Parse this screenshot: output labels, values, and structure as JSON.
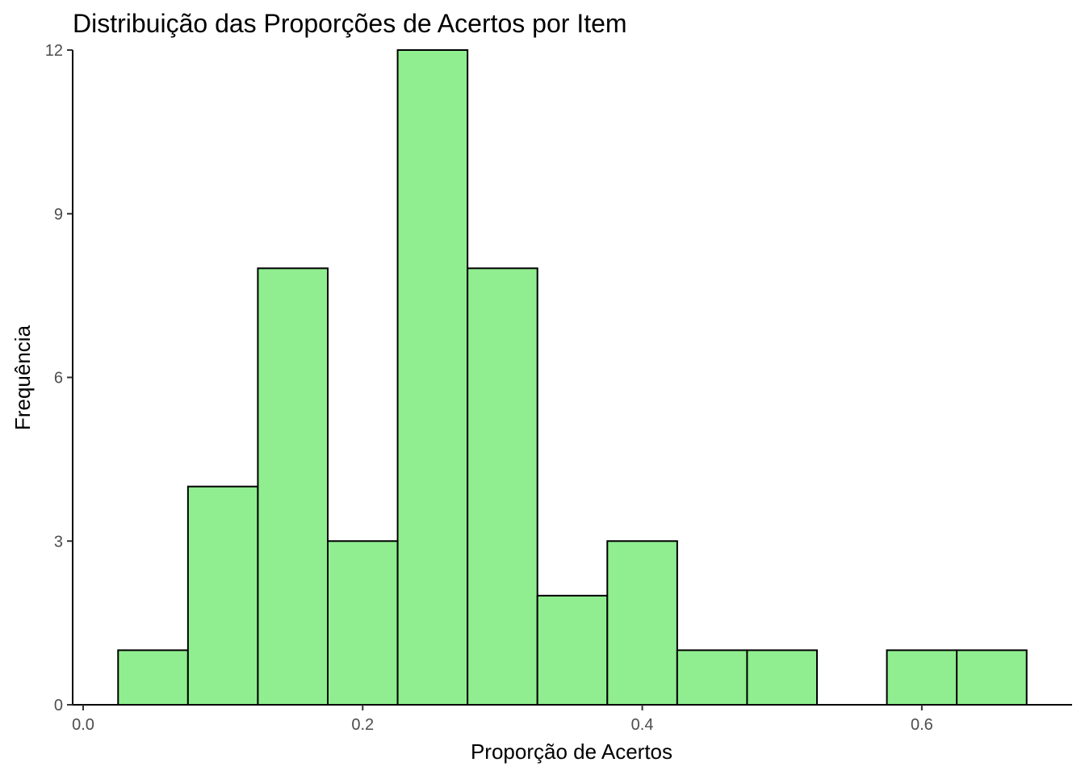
{
  "chart_data": {
    "type": "bar",
    "title": "Distribuição das Proporções de Acertos por Item",
    "xlabel": "Proporção de Acertos",
    "ylabel": "Frequência",
    "bar_color": "#90EE90",
    "bar_edge_color": "#000000",
    "bin_width": 0.05,
    "x": [
      0.05,
      0.1,
      0.15,
      0.2,
      0.25,
      0.3,
      0.35,
      0.4,
      0.45,
      0.5,
      0.55,
      0.6,
      0.65
    ],
    "values": [
      1,
      4,
      8,
      3,
      12,
      8,
      2,
      3,
      1,
      1,
      0,
      1,
      1
    ],
    "xlim": [
      -0.0075,
      0.7075
    ],
    "ylim": [
      0,
      12
    ],
    "x_ticks": [
      0.0,
      0.2,
      0.4,
      0.6
    ],
    "x_tick_labels": [
      "0.0",
      "0.2",
      "0.4",
      "0.6"
    ],
    "y_ticks": [
      0,
      3,
      6,
      9,
      12
    ],
    "y_tick_labels": [
      "0",
      "3",
      "6",
      "9",
      "12"
    ],
    "grid": false,
    "legend": "none"
  }
}
